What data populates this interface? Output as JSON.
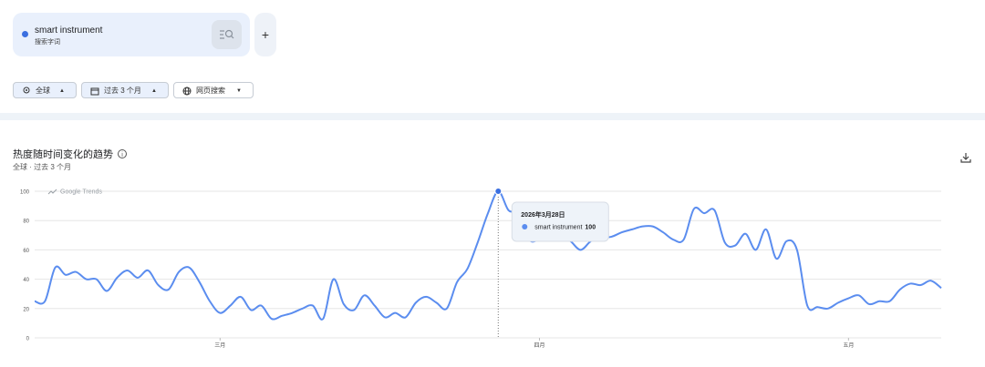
{
  "search_card": {
    "term": "smart instrument",
    "subtitle": "搜索字词"
  },
  "filters": [
    "全球",
    "过去 3 个月",
    "网页搜索"
  ],
  "chart_data": {
    "type": "line",
    "title": "热度随时间变化的趋势",
    "subtitle": "全球 · 过去 3 个月",
    "watermark": "Google Trends",
    "categories": [
      null,
      null,
      null,
      null,
      null,
      null,
      null,
      null,
      null,
      null,
      null,
      null,
      null,
      null,
      null,
      null,
      null,
      null,
      "三月",
      null,
      null,
      null,
      null,
      null,
      null,
      null,
      null,
      null,
      null,
      null,
      null,
      null,
      null,
      null,
      null,
      null,
      null,
      null,
      null,
      null,
      null,
      null,
      null,
      null,
      null,
      null,
      null,
      null,
      null,
      "四月",
      null,
      null,
      null,
      null,
      null,
      null,
      null,
      null,
      null,
      null,
      null,
      null,
      null,
      null,
      null,
      null,
      null,
      null,
      null,
      null,
      null,
      null,
      null,
      null,
      null,
      null,
      null,
      null,
      null,
      "五月",
      null,
      null,
      null,
      null,
      null,
      null,
      null,
      null,
      null
    ],
    "series": [
      {
        "name": "smart instrument",
        "color": "#5b8def",
        "values": [
          25,
          25,
          48,
          43,
          45,
          40,
          40,
          32,
          41,
          46,
          41,
          46,
          36,
          33,
          45,
          48,
          38,
          25,
          17,
          22,
          28,
          19,
          22,
          13,
          15,
          17,
          20,
          22,
          13,
          40,
          23,
          19,
          29,
          22,
          14,
          17,
          14,
          24,
          28,
          24,
          20,
          38,
          47,
          65,
          85,
          100,
          87,
          85,
          67,
          67,
          69,
          70,
          66,
          60,
          66,
          68,
          69,
          72,
          74,
          76,
          76,
          72,
          67,
          67,
          88,
          85,
          87,
          65,
          63,
          71,
          60,
          74,
          54,
          66,
          60,
          22,
          21,
          20,
          24,
          27,
          29,
          23,
          25,
          25,
          33,
          37,
          36,
          39,
          34
        ]
      }
    ],
    "tooltip_date": "2026年3月28日",
    "ylim": [
      0,
      100
    ],
    "yticks": [
      0,
      20,
      40,
      60,
      80,
      100
    ],
    "grid": true
  }
}
